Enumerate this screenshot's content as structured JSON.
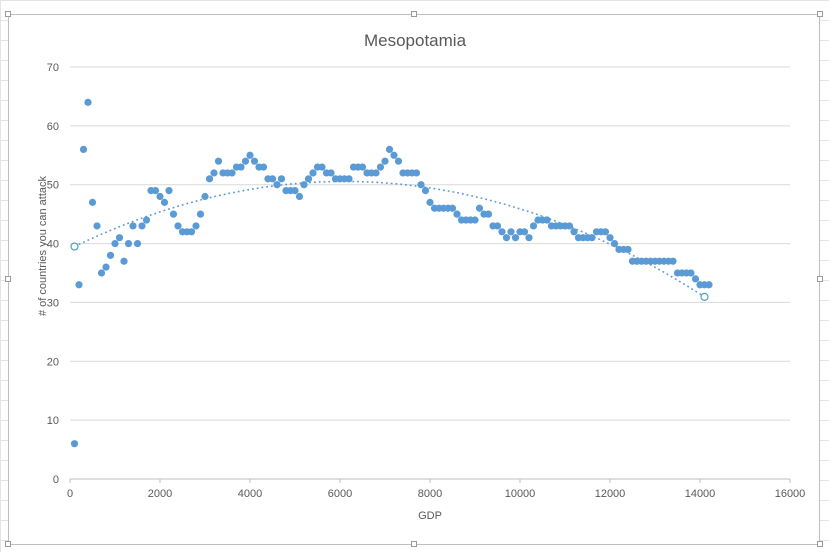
{
  "chart_data": {
    "type": "scatter",
    "title": "Mesopotamia",
    "xlabel": "GDP",
    "ylabel": "# of countries you can attack",
    "xlim": [
      0,
      16000
    ],
    "ylim": [
      0,
      70
    ],
    "xticks": [
      "0",
      "2000",
      "4000",
      "6000",
      "8000",
      "10000",
      "12000",
      "14000",
      "16000"
    ],
    "yticks": [
      "0",
      "10",
      "20",
      "30",
      "40",
      "50",
      "60",
      "70"
    ],
    "grid": "horizontal",
    "marker_color": "#5b9bd5",
    "trendline": {
      "type": "polynomial-2",
      "style": "dotted",
      "color": "#5b9bd5",
      "x_range": [
        100,
        14100
      ]
    },
    "points": [
      [
        100,
        6
      ],
      [
        200,
        33
      ],
      [
        300,
        56
      ],
      [
        400,
        64
      ],
      [
        500,
        47
      ],
      [
        600,
        43
      ],
      [
        700,
        35
      ],
      [
        800,
        36
      ],
      [
        900,
        38
      ],
      [
        1000,
        40
      ],
      [
        1100,
        41
      ],
      [
        1200,
        37
      ],
      [
        1300,
        40
      ],
      [
        1400,
        43
      ],
      [
        1500,
        40
      ],
      [
        1600,
        43
      ],
      [
        1700,
        44
      ],
      [
        1800,
        49
      ],
      [
        1900,
        49
      ],
      [
        2000,
        48
      ],
      [
        2100,
        47
      ],
      [
        2200,
        49
      ],
      [
        2300,
        45
      ],
      [
        2400,
        43
      ],
      [
        2500,
        42
      ],
      [
        2600,
        42
      ],
      [
        2700,
        42
      ],
      [
        2800,
        43
      ],
      [
        2900,
        45
      ],
      [
        3000,
        48
      ],
      [
        3100,
        51
      ],
      [
        3200,
        52
      ],
      [
        3300,
        54
      ],
      [
        3400,
        52
      ],
      [
        3500,
        52
      ],
      [
        3600,
        52
      ],
      [
        3700,
        53
      ],
      [
        3800,
        53
      ],
      [
        3900,
        54
      ],
      [
        4000,
        55
      ],
      [
        4100,
        54
      ],
      [
        4200,
        53
      ],
      [
        4300,
        53
      ],
      [
        4400,
        51
      ],
      [
        4500,
        51
      ],
      [
        4600,
        50
      ],
      [
        4700,
        51
      ],
      [
        4800,
        49
      ],
      [
        4900,
        49
      ],
      [
        5000,
        49
      ],
      [
        5100,
        48
      ],
      [
        5200,
        50
      ],
      [
        5300,
        51
      ],
      [
        5400,
        52
      ],
      [
        5500,
        53
      ],
      [
        5600,
        53
      ],
      [
        5700,
        52
      ],
      [
        5800,
        52
      ],
      [
        5900,
        51
      ],
      [
        6000,
        51
      ],
      [
        6100,
        51
      ],
      [
        6200,
        51
      ],
      [
        6300,
        53
      ],
      [
        6400,
        53
      ],
      [
        6500,
        53
      ],
      [
        6600,
        52
      ],
      [
        6700,
        52
      ],
      [
        6800,
        52
      ],
      [
        6900,
        53
      ],
      [
        7000,
        54
      ],
      [
        7100,
        56
      ],
      [
        7200,
        55
      ],
      [
        7300,
        54
      ],
      [
        7400,
        52
      ],
      [
        7500,
        52
      ],
      [
        7600,
        52
      ],
      [
        7700,
        52
      ],
      [
        7800,
        50
      ],
      [
        7900,
        49
      ],
      [
        8000,
        47
      ],
      [
        8100,
        46
      ],
      [
        8200,
        46
      ],
      [
        8300,
        46
      ],
      [
        8400,
        46
      ],
      [
        8500,
        46
      ],
      [
        8600,
        45
      ],
      [
        8700,
        44
      ],
      [
        8800,
        44
      ],
      [
        8900,
        44
      ],
      [
        9000,
        44
      ],
      [
        9100,
        46
      ],
      [
        9200,
        45
      ],
      [
        9300,
        45
      ],
      [
        9400,
        43
      ],
      [
        9500,
        43
      ],
      [
        9600,
        42
      ],
      [
        9700,
        41
      ],
      [
        9800,
        42
      ],
      [
        9900,
        41
      ],
      [
        10000,
        42
      ],
      [
        10100,
        42
      ],
      [
        10200,
        41
      ],
      [
        10300,
        43
      ],
      [
        10400,
        44
      ],
      [
        10500,
        44
      ],
      [
        10600,
        44
      ],
      [
        10700,
        43
      ],
      [
        10800,
        43
      ],
      [
        10900,
        43
      ],
      [
        11000,
        43
      ],
      [
        11100,
        43
      ],
      [
        11200,
        42
      ],
      [
        11300,
        41
      ],
      [
        11400,
        41
      ],
      [
        11500,
        41
      ],
      [
        11600,
        41
      ],
      [
        11700,
        42
      ],
      [
        11800,
        42
      ],
      [
        11900,
        42
      ],
      [
        12000,
        41
      ],
      [
        12100,
        40
      ],
      [
        12200,
        39
      ],
      [
        12300,
        39
      ],
      [
        12400,
        39
      ],
      [
        12500,
        37
      ],
      [
        12600,
        37
      ],
      [
        12700,
        37
      ],
      [
        12800,
        37
      ],
      [
        12900,
        37
      ],
      [
        13000,
        37
      ],
      [
        13100,
        37
      ],
      [
        13200,
        37
      ],
      [
        13300,
        37
      ],
      [
        13400,
        37
      ],
      [
        13500,
        35
      ],
      [
        13600,
        35
      ],
      [
        13700,
        35
      ],
      [
        13800,
        35
      ],
      [
        13900,
        34
      ],
      [
        14000,
        33
      ],
      [
        14100,
        33
      ],
      [
        14200,
        33
      ]
    ]
  }
}
